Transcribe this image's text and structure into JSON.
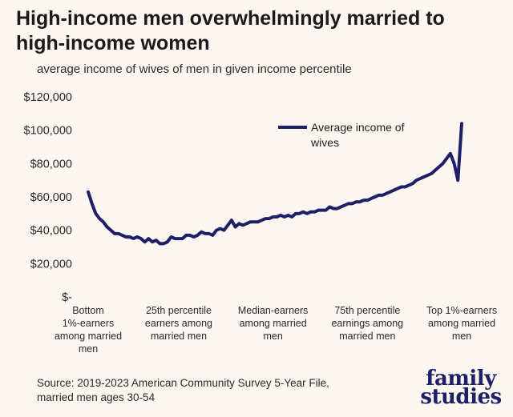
{
  "title": "High-income men overwhelmingly married to high-income women",
  "subtitle": "average income of wives of men in given income percentile",
  "source": "Source: 2019-2023 American Community Survey 5-Year File, married men ages 30-54",
  "logo": {
    "line1": "family",
    "line2": "studies"
  },
  "colors": {
    "line": "#1e1f66",
    "background": "#fcf6f1"
  },
  "chart_data": {
    "type": "line",
    "title": "High-income men overwhelmingly married to high-income women",
    "subtitle": "average income of wives of men in given income percentile",
    "ylabel": "",
    "xlabel": "",
    "ylim": [
      0,
      120000
    ],
    "y_ticks": [
      0,
      20000,
      40000,
      60000,
      80000,
      100000,
      120000
    ],
    "y_tick_labels": [
      "$-",
      "$20,000",
      "$40,000",
      "$60,000",
      "$80,000",
      "$100,000",
      "$120,000"
    ],
    "x_tick_positions": [
      1,
      25,
      50,
      75,
      100
    ],
    "x_tick_labels": [
      "Bottom 1%-earners among married men",
      "25th percentile earners among married men",
      "Median-earners among married men",
      "75th percentile earnings among married men",
      "Top 1%-earners among married men"
    ],
    "legend": "top-right",
    "grid": false,
    "series": [
      {
        "name": "Average income of wives",
        "x": [
          1,
          2,
          3,
          4,
          5,
          6,
          7,
          8,
          9,
          10,
          11,
          12,
          13,
          14,
          15,
          16,
          17,
          18,
          19,
          20,
          21,
          22,
          23,
          24,
          25,
          26,
          27,
          28,
          29,
          30,
          31,
          32,
          33,
          34,
          35,
          36,
          37,
          38,
          39,
          40,
          41,
          42,
          43,
          44,
          45,
          46,
          47,
          48,
          49,
          50,
          51,
          52,
          53,
          54,
          55,
          56,
          57,
          58,
          59,
          60,
          61,
          62,
          63,
          64,
          65,
          66,
          67,
          68,
          69,
          70,
          71,
          72,
          73,
          74,
          75,
          76,
          77,
          78,
          79,
          80,
          81,
          82,
          83,
          84,
          85,
          86,
          87,
          88,
          89,
          90,
          91,
          92,
          93,
          94,
          95,
          96,
          97,
          98,
          99,
          100
        ],
        "values": [
          63000,
          56000,
          50000,
          47000,
          45000,
          42000,
          40000,
          38000,
          38000,
          37000,
          36000,
          36000,
          35000,
          36000,
          35000,
          33000,
          35000,
          33000,
          34000,
          32000,
          32000,
          33000,
          36000,
          35000,
          35000,
          35000,
          37000,
          37000,
          36000,
          37000,
          39000,
          38000,
          38000,
          37000,
          40000,
          41000,
          40000,
          43000,
          46000,
          42000,
          44000,
          43000,
          44000,
          45000,
          45000,
          45000,
          46000,
          47000,
          47000,
          48000,
          48000,
          49000,
          48000,
          49000,
          48000,
          50000,
          50000,
          51000,
          50000,
          51000,
          51000,
          52000,
          52000,
          52000,
          54000,
          53000,
          53000,
          54000,
          55000,
          56000,
          56000,
          57000,
          57000,
          58000,
          58000,
          59000,
          60000,
          61000,
          61000,
          62000,
          63000,
          64000,
          65000,
          66000,
          66000,
          67000,
          68000,
          70000,
          71000,
          72000,
          73000,
          74000,
          76000,
          78000,
          80000,
          83000,
          86000,
          80000,
          70000,
          104000
        ]
      }
    ]
  }
}
